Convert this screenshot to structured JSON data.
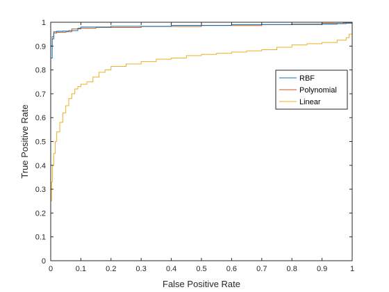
{
  "chart_data": {
    "type": "line",
    "xlabel": "False Positive Rate",
    "ylabel": "True Positive Rate",
    "xlim": [
      0,
      1
    ],
    "ylim": [
      0,
      1
    ],
    "x_ticks": [
      "0",
      "0.1",
      "0.2",
      "0.3",
      "0.4",
      "0.5",
      "0.6",
      "0.7",
      "0.8",
      "0.9",
      "1"
    ],
    "y_ticks": [
      "0",
      "0.1",
      "0.2",
      "0.3",
      "0.4",
      "0.5",
      "0.6",
      "0.7",
      "0.8",
      "0.9",
      "1"
    ],
    "grid": false,
    "legend_position": "upper-right",
    "series": [
      {
        "name": "RBF",
        "color": "#0072BD",
        "x": [
          0,
          0,
          0.005,
          0.01,
          0.02,
          0.04,
          0.06,
          0.08,
          0.09,
          0.1,
          0.12,
          0.2,
          0.4,
          0.6,
          0.8,
          0.95,
          0.98,
          1
        ],
        "y": [
          0,
          0.85,
          0.93,
          0.96,
          0.962,
          0.963,
          0.965,
          0.965,
          0.975,
          0.98,
          0.98,
          0.983,
          0.987,
          0.99,
          0.992,
          0.994,
          0.996,
          1
        ]
      },
      {
        "name": "Polynomial",
        "color": "#D95319",
        "x": [
          0,
          0,
          0.005,
          0.01,
          0.02,
          0.05,
          0.07,
          0.1,
          0.15,
          0.3,
          0.5,
          0.7,
          0.9,
          0.97,
          1
        ],
        "y": [
          0,
          0.9,
          0.94,
          0.955,
          0.958,
          0.96,
          0.972,
          0.975,
          0.978,
          0.982,
          0.986,
          0.99,
          0.995,
          0.998,
          1
        ]
      },
      {
        "name": "Linear",
        "color": "#EDB120",
        "x": [
          0,
          0.003,
          0.006,
          0.01,
          0.015,
          0.02,
          0.03,
          0.04,
          0.05,
          0.06,
          0.07,
          0.08,
          0.09,
          0.1,
          0.12,
          0.14,
          0.16,
          0.18,
          0.2,
          0.25,
          0.3,
          0.35,
          0.4,
          0.45,
          0.5,
          0.55,
          0.6,
          0.65,
          0.7,
          0.75,
          0.8,
          0.85,
          0.9,
          0.95,
          0.98,
          0.99,
          1
        ],
        "y": [
          0.25,
          0.33,
          0.4,
          0.45,
          0.5,
          0.54,
          0.58,
          0.62,
          0.65,
          0.68,
          0.7,
          0.72,
          0.73,
          0.74,
          0.75,
          0.77,
          0.79,
          0.8,
          0.815,
          0.825,
          0.835,
          0.845,
          0.85,
          0.86,
          0.865,
          0.87,
          0.875,
          0.88,
          0.885,
          0.895,
          0.905,
          0.91,
          0.915,
          0.925,
          0.935,
          0.95,
          0.98
        ]
      }
    ]
  }
}
